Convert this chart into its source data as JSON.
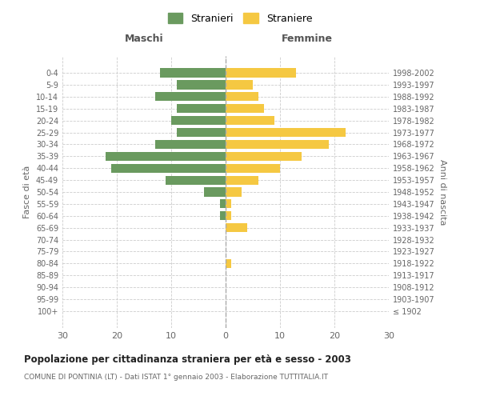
{
  "age_groups": [
    "100+",
    "95-99",
    "90-94",
    "85-89",
    "80-84",
    "75-79",
    "70-74",
    "65-69",
    "60-64",
    "55-59",
    "50-54",
    "45-49",
    "40-44",
    "35-39",
    "30-34",
    "25-29",
    "20-24",
    "15-19",
    "10-14",
    "5-9",
    "0-4"
  ],
  "birth_years": [
    "≤ 1902",
    "1903-1907",
    "1908-1912",
    "1913-1917",
    "1918-1922",
    "1923-1927",
    "1928-1932",
    "1933-1937",
    "1938-1942",
    "1943-1947",
    "1948-1952",
    "1953-1957",
    "1958-1962",
    "1963-1967",
    "1968-1972",
    "1973-1977",
    "1978-1982",
    "1983-1987",
    "1988-1992",
    "1993-1997",
    "1998-2002"
  ],
  "maschi": [
    0,
    0,
    0,
    0,
    0,
    0,
    0,
    0,
    1,
    1,
    4,
    11,
    21,
    22,
    13,
    9,
    10,
    9,
    13,
    9,
    12
  ],
  "femmine": [
    0,
    0,
    0,
    0,
    1,
    0,
    0,
    4,
    1,
    1,
    3,
    6,
    10,
    14,
    19,
    22,
    9,
    7,
    6,
    5,
    13
  ],
  "color_maschi": "#6a9a5f",
  "color_femmine": "#f5c842",
  "title": "Popolazione per cittadinanza straniera per età e sesso - 2003",
  "subtitle": "COMUNE DI PONTINIA (LT) - Dati ISTAT 1° gennaio 2003 - Elaborazione TUTTITALIA.IT",
  "xlabel_left": "Maschi",
  "xlabel_right": "Femmine",
  "ylabel_left": "Fasce di età",
  "ylabel_right": "Anni di nascita",
  "legend_maschi": "Stranieri",
  "legend_femmine": "Straniere",
  "xlim": 30,
  "background_color": "#ffffff",
  "grid_color": "#cccccc"
}
